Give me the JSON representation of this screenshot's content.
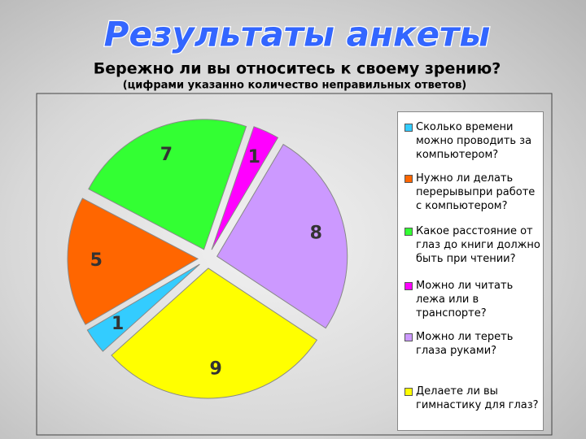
{
  "chart_data": {
    "type": "pie",
    "title": "Результаты анкеты",
    "subtitle": "Бережно ли вы относитесь к своему зрению?",
    "note": "(цифрами указанно количество неправильных ответов)",
    "categories": [
      "Сколько времени можно проводить за компьютером?",
      "Нужно ли делать перерывыпри работе с компьютером?",
      "Какое расстояние от глаз до книги должно быть при чтении?",
      "Можно ли читать лежа или в транспорте?",
      "Можно ли тереть глаза руками?",
      "Делаете ли вы гимнастику для глаз?"
    ],
    "values": [
      1,
      5,
      7,
      1,
      8,
      9
    ],
    "colors": [
      "#33ccff",
      "#ff6600",
      "#33ff33",
      "#ff00ff",
      "#cc99ff",
      "#ffff00"
    ],
    "legend": "right"
  }
}
